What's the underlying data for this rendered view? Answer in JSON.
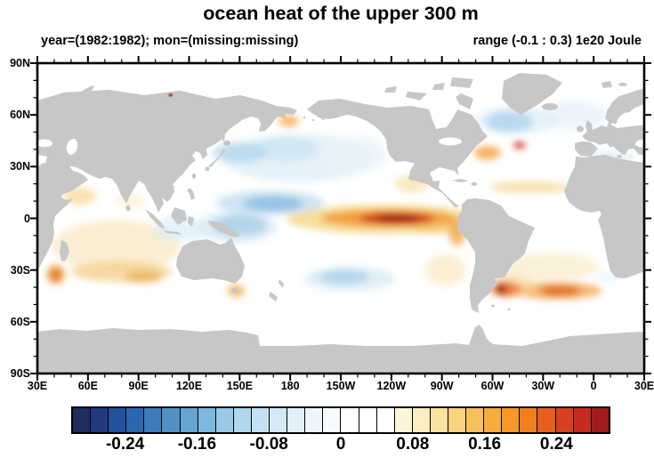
{
  "title": "ocean heat of the upper 300 m",
  "subtitle_left": "year=(1982:1982); mon=(missing:missing)",
  "subtitle_right": "range (-0.1 : 0.3) 1e20 Joule",
  "chart_data": {
    "type": "heatmap",
    "projection": "cylindrical-equidistant-world-map",
    "lon_range_plot": [
      30,
      390
    ],
    "lat_range": [
      -90,
      90
    ],
    "units": "1e20 Joule",
    "grid": "off",
    "frame_color": "#000000",
    "land_color": "#c7c7c7",
    "ocean_color": "#ffffff",
    "minor_tick_interval_deg": 10,
    "major_tick_interval_deg": 30,
    "x_ticks": [
      {
        "label": "30E",
        "plot_deg": 0
      },
      {
        "label": "60E",
        "plot_deg": 30
      },
      {
        "label": "90E",
        "plot_deg": 60
      },
      {
        "label": "120E",
        "plot_deg": 90
      },
      {
        "label": "150E",
        "plot_deg": 120
      },
      {
        "label": "180",
        "plot_deg": 150
      },
      {
        "label": "150W",
        "plot_deg": 180
      },
      {
        "label": "120W",
        "plot_deg": 210
      },
      {
        "label": "90W",
        "plot_deg": 240
      },
      {
        "label": "60W",
        "plot_deg": 270
      },
      {
        "label": "30W",
        "plot_deg": 300
      },
      {
        "label": "0",
        "plot_deg": 330
      },
      {
        "label": "30E",
        "plot_deg": 360
      }
    ],
    "y_ticks": [
      {
        "label": "90N",
        "lat": 90
      },
      {
        "label": "60N",
        "lat": 60
      },
      {
        "label": "30N",
        "lat": 30
      },
      {
        "label": "0",
        "lat": 0
      },
      {
        "label": "30S",
        "lat": -30
      },
      {
        "label": "60S",
        "lat": -60
      },
      {
        "label": "90S",
        "lat": -90
      }
    ],
    "colorbar": {
      "levels_min": -0.3,
      "levels_max": 0.3,
      "step": 0.02,
      "colors": [
        "#1f2c5e",
        "#21397f",
        "#21519f",
        "#2b66b0",
        "#3d7cba",
        "#5191c6",
        "#66a5d2",
        "#7fb8de",
        "#99c9e7",
        "#b0d7ee",
        "#c4e1f3",
        "#d5eaf6",
        "#e2f1f9",
        "#edf6fb",
        "#f8fbfd",
        "#ffffff",
        "#ffffff",
        "#ffffff",
        "#fdf5d8",
        "#fceec0",
        "#fbe29f",
        "#fad37e",
        "#f8c05c",
        "#f7ac3e",
        "#f59828",
        "#f0801f",
        "#e6601d",
        "#d8401e",
        "#c52b20",
        "#a01c1e"
      ],
      "labels": [
        {
          "text": "-0.24",
          "boundary": 3
        },
        {
          "text": "-0.16",
          "boundary": 7
        },
        {
          "text": "-0.08",
          "boundary": 11
        },
        {
          "text": "0",
          "boundary": 15
        },
        {
          "text": "0.08",
          "boundary": 19
        },
        {
          "text": "0.16",
          "boundary": 23
        },
        {
          "text": "0.24",
          "boundary": 27
        }
      ]
    },
    "anomalies_note": "approximate heat-content anomaly blobs read from the map; lon in degE (negative=degW), radii in degrees, color keyed to the colorbar",
    "anomalies": [
      {
        "name": "indian-ocean-broad-warm",
        "lon": 77,
        "lat": -16,
        "rx_deg": 38,
        "ry_deg": 15,
        "color": "#f8e5bd",
        "opacity": 0.7,
        "layer": "under"
      },
      {
        "name": "indian-30s-band",
        "lon": 80,
        "lat": -31,
        "rx_deg": 30,
        "ry_deg": 6,
        "color": "#f3cc82",
        "opacity": 0.7,
        "layer": "under"
      },
      {
        "name": "indian-34s-spot",
        "lon": 93,
        "lat": -34,
        "rx_deg": 11,
        "ry_deg": 3.5,
        "color": "#eaa94e",
        "opacity": 0.7,
        "layer": "under"
      },
      {
        "name": "agulhas-warm",
        "lon": 41,
        "lat": -32.5,
        "rx_deg": 5.5,
        "ry_deg": 5.5,
        "color": "#eda33f",
        "opacity": 0.85,
        "layer": "under"
      },
      {
        "name": "agulhas-core",
        "lon": 41,
        "lat": -33,
        "rx_deg": 3,
        "ry_deg": 3,
        "color": "#dd6a22",
        "opacity": 0.85,
        "layer": "under"
      },
      {
        "name": "arabian-sea-warm",
        "lon": 55,
        "lat": 13,
        "rx_deg": 10,
        "ry_deg": 5,
        "color": "#f6d795",
        "opacity": 0.75,
        "layer": "under"
      },
      {
        "name": "bay-of-bengal-warm",
        "lon": 85,
        "lat": 10,
        "rx_deg": 9,
        "ry_deg": 4,
        "color": "#faecc9",
        "opacity": 0.6,
        "layer": "under"
      },
      {
        "name": "south-atlantic-subtropics-warm",
        "lon": -25,
        "lat": -28,
        "rx_deg": 28,
        "ry_deg": 8,
        "color": "#f9e8c0",
        "opacity": 0.6,
        "layer": "under"
      },
      {
        "name": "south-atlantic-40s-band",
        "lon": -22,
        "lat": -42,
        "rx_deg": 27,
        "ry_deg": 5,
        "color": "#efa045",
        "opacity": 0.75,
        "layer": "under"
      },
      {
        "name": "south-atlantic-40s-core",
        "lon": -20,
        "lat": -42,
        "rx_deg": 12,
        "ry_deg": 3,
        "color": "#e0641f",
        "opacity": 0.8,
        "layer": "under"
      },
      {
        "name": "brazil-malvinas-halo",
        "lon": -50,
        "lat": -39,
        "rx_deg": 15,
        "ry_deg": 7,
        "color": "#f6d698",
        "opacity": 0.6,
        "layer": "under"
      },
      {
        "name": "brazil-malvinas-warm",
        "lon": -52,
        "lat": -41,
        "rx_deg": 9,
        "ry_deg": 4.5,
        "color": "#e8752c",
        "opacity": 0.8,
        "layer": "under"
      },
      {
        "name": "brazil-malvinas-core",
        "lon": -54.5,
        "lat": -41,
        "rx_deg": 3.5,
        "ry_deg": 3,
        "color": "#a81418",
        "opacity": 0.95,
        "layer": "under"
      },
      {
        "name": "atlantic-20n-band",
        "lon": -38,
        "lat": 18,
        "rx_deg": 24,
        "ry_deg": 3.5,
        "color": "#f4d790",
        "opacity": 0.7,
        "layer": "under"
      },
      {
        "name": "gulf-stream-warm",
        "lon": -63,
        "lat": 38,
        "rx_deg": 8,
        "ry_deg": 4,
        "color": "#f2a848",
        "opacity": 0.85,
        "layer": "under"
      },
      {
        "name": "grand-banks-hot-spot",
        "lon": -44,
        "lat": 42.5,
        "rx_deg": 3.5,
        "ry_deg": 2,
        "color": "#cc2a18",
        "opacity": 0.95,
        "layer": "under"
      },
      {
        "name": "se-pacific-warm",
        "lon": -88,
        "lat": -30,
        "rx_deg": 12,
        "ry_deg": 9,
        "color": "#f8e3b4",
        "opacity": 0.6,
        "layer": "under"
      },
      {
        "name": "mexico-coast-warm",
        "lon": -108,
        "lat": 20,
        "rx_deg": 10,
        "ry_deg": 5,
        "color": "#f7dfa8",
        "opacity": 0.7,
        "layer": "under"
      },
      {
        "name": "tasman-spot-warm",
        "lon": 148,
        "lat": -42,
        "rx_deg": 5,
        "ry_deg": 3.5,
        "color": "#f0b050",
        "opacity": 0.85,
        "layer": "under"
      },
      {
        "name": "bering-kamchatka-warm",
        "lon": 179,
        "lat": 56.5,
        "rx_deg": 6,
        "ry_deg": 3.5,
        "color": "#f3ae4e",
        "opacity": 0.8,
        "layer": "under"
      },
      {
        "name": "el-nino-halo",
        "lon": -124,
        "lat": -0.5,
        "rx_deg": 58,
        "ry_deg": 8.5,
        "color": "#f6d98a",
        "opacity": 0.85,
        "layer": "under"
      },
      {
        "name": "el-nino-east-warm",
        "lon": -95,
        "lat": -3,
        "rx_deg": 16,
        "ry_deg": 6,
        "color": "#f6c368",
        "opacity": 0.65,
        "layer": "under"
      },
      {
        "name": "peru-coast-warm",
        "lon": -81,
        "lat": -8,
        "rx_deg": 5,
        "ry_deg": 8,
        "color": "#f0a84e",
        "opacity": 0.8,
        "layer": "under"
      },
      {
        "name": "el-nino-mid",
        "lon": -122,
        "lat": 0,
        "rx_deg": 40,
        "ry_deg": 5.2,
        "color": "#f29b38",
        "opacity": 0.9,
        "layer": "under"
      },
      {
        "name": "el-nino-core",
        "lon": -117,
        "lat": 0,
        "rx_deg": 22,
        "ry_deg": 3.4,
        "color": "#c8391c",
        "opacity": 0.95,
        "layer": "under"
      },
      {
        "name": "el-nino-inner-core",
        "lon": -116,
        "lat": 0,
        "rx_deg": 12,
        "ry_deg": 2.3,
        "color": "#9e1a15",
        "opacity": 0.95,
        "layer": "under"
      },
      {
        "name": "north-pacific-broad-cool",
        "lon": -175,
        "lat": 35,
        "rx_deg": 45,
        "ry_deg": 14,
        "color": "#ddeef7",
        "opacity": 0.8,
        "layer": "under"
      },
      {
        "name": "central-north-pacific-cool",
        "lon": 177,
        "lat": 40,
        "rx_deg": 20,
        "ry_deg": 7,
        "color": "#cde5f3",
        "opacity": 0.8,
        "layer": "under"
      },
      {
        "name": "kuroshio-cool",
        "lon": 150,
        "lat": 38,
        "rx_deg": 16,
        "ry_deg": 6,
        "color": "#b5d7ec",
        "opacity": 0.8,
        "layer": "under"
      },
      {
        "name": "ne-pacific-cool",
        "lon": -142,
        "lat": 37,
        "rx_deg": 20,
        "ry_deg": 11,
        "color": "#e8f4fa",
        "opacity": 0.7,
        "layer": "under"
      },
      {
        "name": "west-pacific-north-band-cool",
        "lon": 168,
        "lat": 9,
        "rx_deg": 32,
        "ry_deg": 7,
        "color": "#c3ddef",
        "opacity": 0.8,
        "layer": "under"
      },
      {
        "name": "west-pacific-north-band-core-cool",
        "lon": 170,
        "lat": 8.5,
        "rx_deg": 18,
        "ry_deg": 4.5,
        "color": "#8fc0e2",
        "opacity": 0.85,
        "layer": "under"
      },
      {
        "name": "coral-sea-cool",
        "lon": 148,
        "lat": -5,
        "rx_deg": 24,
        "ry_deg": 9,
        "color": "#d0e6f3",
        "opacity": 0.7,
        "layer": "under"
      },
      {
        "name": "png-solomon-cool",
        "lon": 150,
        "lat": -4,
        "rx_deg": 16,
        "ry_deg": 6,
        "color": "#a9cfe8",
        "opacity": 0.8,
        "layer": "under"
      },
      {
        "name": "indonesia-cool",
        "lon": 115,
        "lat": -6,
        "rx_deg": 16,
        "ry_deg": 7,
        "color": "#d8ecf6",
        "opacity": 0.7,
        "layer": "under"
      },
      {
        "name": "south-pacific-35s-cool",
        "lon": -145,
        "lat": -35,
        "rx_deg": 27,
        "ry_deg": 7,
        "color": "#d3e8f4",
        "opacity": 0.7,
        "layer": "under"
      },
      {
        "name": "south-pacific-35s-cool-core",
        "lon": -148,
        "lat": -34,
        "rx_deg": 15,
        "ry_deg": 4,
        "color": "#a8cfe8",
        "opacity": 0.8,
        "layer": "under"
      },
      {
        "name": "north-atlantic-subpolar-cool-outer",
        "lon": -45,
        "lat": 57,
        "rx_deg": 25,
        "ry_deg": 8,
        "color": "#dcedf6",
        "opacity": 0.7,
        "layer": "under"
      },
      {
        "name": "north-atlantic-subpolar-cool",
        "lon": -50,
        "lat": 56,
        "rx_deg": 14,
        "ry_deg": 6,
        "color": "#aed3ec",
        "opacity": 0.8,
        "layer": "under"
      },
      {
        "name": "norwegian-sea-cool",
        "lon": -12,
        "lat": 60,
        "rx_deg": 20,
        "ry_deg": 8,
        "color": "#e2f0f8",
        "opacity": 0.7,
        "layer": "under"
      },
      {
        "name": "mediterranean-cool",
        "lon": 10,
        "lat": 36,
        "rx_deg": 16,
        "ry_deg": 3,
        "color": "#d8ebf5",
        "opacity": 0.7,
        "layer": "under"
      },
      {
        "name": "benguela-cool",
        "lon": 8,
        "lat": -34,
        "rx_deg": 8,
        "ry_deg": 2.5,
        "color": "#e4f2f9",
        "opacity": 0.7,
        "layer": "under"
      },
      {
        "name": "siberian-coast-hot-dot",
        "lon": 109,
        "lat": 71.5,
        "rx_deg": 1.2,
        "ry_deg": 0.9,
        "color": "#b02020",
        "opacity": 0.9,
        "layer": "over"
      }
    ]
  }
}
